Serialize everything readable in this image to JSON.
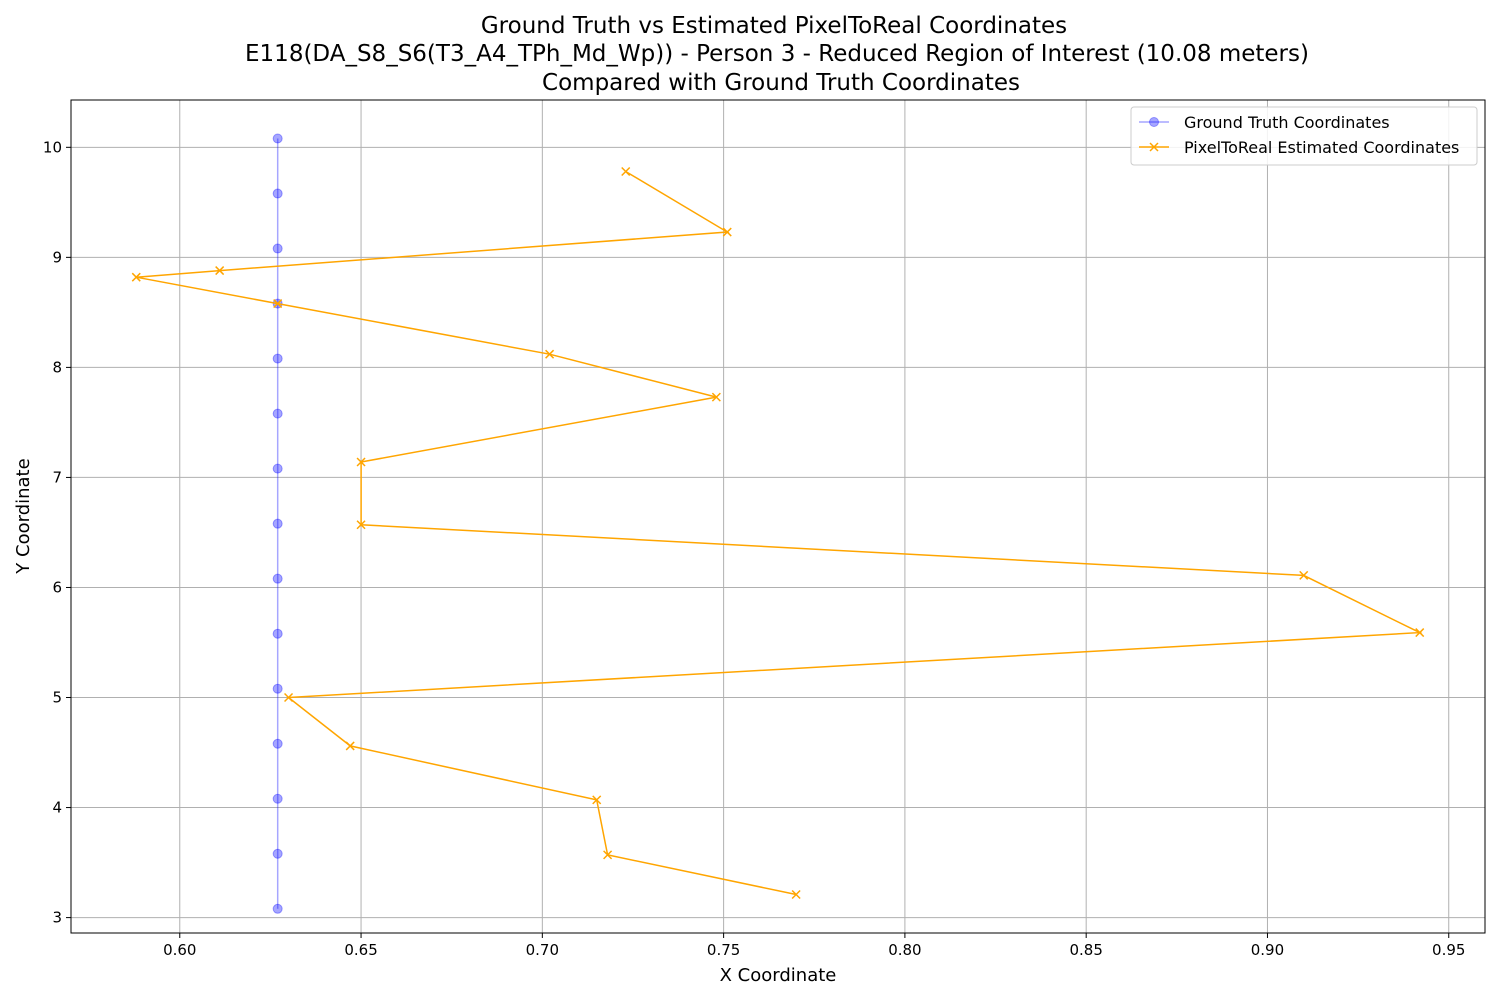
{
  "chart_data": {
    "type": "line",
    "title_lines": [
      "Ground Truth vs Estimated PixelToReal Coordinates",
      "E118(DA_S8_S6(T3_A4_TPh_Md_Wp)) - Person 3 - Reduced Region of Interest (10.08 meters)",
      "Compared with Ground Truth Coordinates"
    ],
    "xlabel": "X Coordinate",
    "ylabel": "Y Coordinate",
    "xlim": [
      0.57,
      0.96
    ],
    "ylim": [
      2.86,
      10.43
    ],
    "xticks": [
      0.6,
      0.65,
      0.7,
      0.75,
      0.8,
      0.85,
      0.9,
      0.95
    ],
    "xtick_labels": [
      "0.60",
      "0.65",
      "0.70",
      "0.75",
      "0.80",
      "0.85",
      "0.90",
      "0.95"
    ],
    "yticks": [
      3,
      4,
      5,
      6,
      7,
      8,
      9,
      10
    ],
    "ytick_labels": [
      "3",
      "4",
      "5",
      "6",
      "7",
      "8",
      "9",
      "10"
    ],
    "grid": true,
    "legend_position": "top-right",
    "series": [
      {
        "name": "Ground Truth Coordinates",
        "color": "#0000ff",
        "marker": "circle",
        "x": [
          0.627,
          0.627,
          0.627,
          0.627,
          0.627,
          0.627,
          0.627,
          0.627,
          0.627,
          0.627,
          0.627,
          0.627,
          0.627,
          0.627,
          0.627
        ],
        "y": [
          10.08,
          9.58,
          9.08,
          8.58,
          8.08,
          7.58,
          7.08,
          6.58,
          6.08,
          5.58,
          5.08,
          4.58,
          4.08,
          3.58,
          3.08
        ]
      },
      {
        "name": "PixelToReal Estimated Coordinates",
        "color": "#ffa500",
        "marker": "x",
        "x": [
          0.723,
          0.751,
          0.611,
          0.588,
          0.627,
          0.702,
          0.748,
          0.65,
          0.65,
          0.91,
          0.942,
          0.63,
          0.647,
          0.715,
          0.718,
          0.77
        ],
        "y": [
          9.78,
          9.23,
          8.88,
          8.82,
          8.58,
          8.12,
          7.73,
          7.14,
          6.57,
          6.11,
          5.59,
          5.0,
          4.56,
          4.07,
          3.57,
          3.21
        ]
      }
    ]
  }
}
